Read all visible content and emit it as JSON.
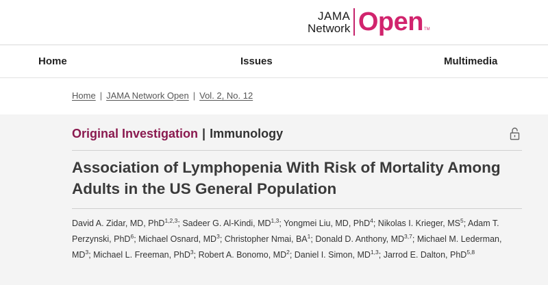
{
  "logo": {
    "jama": "JAMA",
    "network": "Network",
    "open": "Open",
    "tm": "TM"
  },
  "nav": {
    "home": "Home",
    "issues": "Issues",
    "multimedia": "Multimedia"
  },
  "breadcrumb": {
    "items": [
      "Home",
      "JAMA Network Open",
      "Vol. 2, No. 12"
    ],
    "separator": "|"
  },
  "article": {
    "type_primary": "Original Investigation",
    "type_separator": "|",
    "type_secondary": "Immunology",
    "title": "Association of Lymphopenia With Risk of Mortality Among Adults in the US General Population",
    "access_icon": "unlock-icon",
    "authors": [
      {
        "name": "David A. Zidar, MD, PhD",
        "aff": "1,2,3",
        "sep": "; "
      },
      {
        "name": "Sadeer G. Al-Kindi, MD",
        "aff": "1,3",
        "sep": "; "
      },
      {
        "name": "Yongmei Liu, MD, PhD",
        "aff": "4",
        "sep": "; "
      },
      {
        "name": "Nikolas I. Krieger, MS",
        "aff": "5",
        "sep": "; "
      },
      {
        "name": "Adam T. Perzynski, PhD",
        "aff": "6",
        "sep": "; "
      },
      {
        "name": "Michael Osnard, MD",
        "aff": "3",
        "sep": "; "
      },
      {
        "name": "Christopher Nmai, BA",
        "aff": "1",
        "sep": "; "
      },
      {
        "name": "Donald D. Anthony, MD",
        "aff": "3,7",
        "sep": "; "
      },
      {
        "name": "Michael M. Lederman, MD",
        "aff": "3",
        "sep": "; "
      },
      {
        "name": "Michael L. Freeman, PhD",
        "aff": "3",
        "sep": "; "
      },
      {
        "name": "Robert A. Bonomo, MD",
        "aff": "2",
        "sep": "; "
      },
      {
        "name": "Daniel I. Simon, MD",
        "aff": "1,3",
        "sep": "; "
      },
      {
        "name": "Jarrod E. Dalton, PhD",
        "aff": "5,8",
        "sep": ""
      }
    ]
  },
  "colors": {
    "brand": "#d1246d",
    "type_primary": "#8a1a4f",
    "article_bg": "#f4f4f4"
  }
}
